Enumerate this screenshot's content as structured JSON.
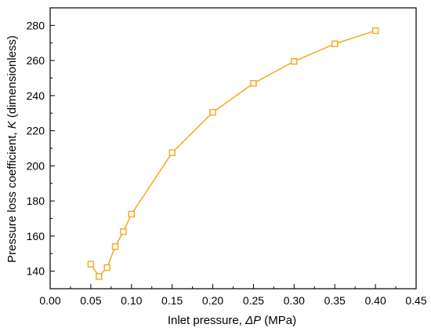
{
  "chart_data": {
    "type": "line",
    "title": "",
    "xlabel": {
      "prefix": "Inlet pressure, ",
      "symbol": "ΔP",
      "suffix": " (MPa)"
    },
    "ylabel": {
      "prefix": "Pressure loss coefficient, ",
      "symbol": "K",
      "suffix": " (dimensionless)"
    },
    "xlim": [
      0.0,
      0.45
    ],
    "ylim": [
      130,
      290
    ],
    "xticks": [
      "0.00",
      "0.05",
      "0.10",
      "0.15",
      "0.20",
      "0.25",
      "0.30",
      "0.35",
      "0.40",
      "0.45"
    ],
    "yticks": [
      "140",
      "160",
      "180",
      "200",
      "220",
      "240",
      "260",
      "280"
    ],
    "grid": false,
    "legend": "none",
    "series": [
      {
        "color": "#F2A81D",
        "marker": "open-square",
        "x": [
          0.05,
          0.06,
          0.07,
          0.08,
          0.09,
          0.1,
          0.15,
          0.2,
          0.25,
          0.3,
          0.35,
          0.4
        ],
        "y": [
          144,
          137,
          142,
          154,
          162.5,
          172.5,
          207.5,
          230.5,
          247,
          259.5,
          269.5,
          277
        ]
      }
    ]
  }
}
